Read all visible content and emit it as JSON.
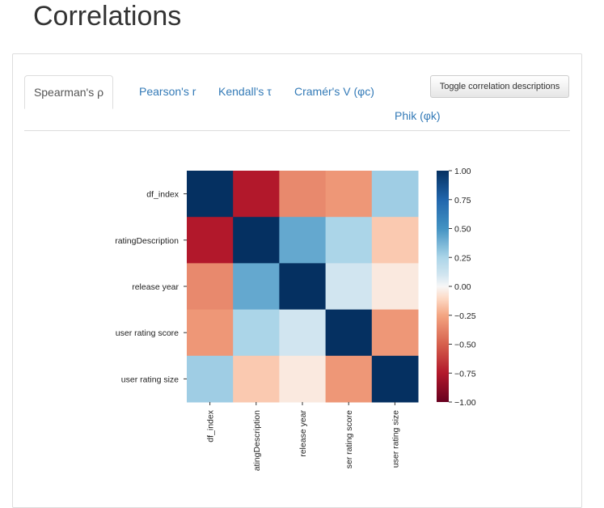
{
  "page": {
    "title": "Correlations"
  },
  "tabs": [
    {
      "label": "Spearman's ρ",
      "active": true
    },
    {
      "label": "Pearson's r",
      "active": false
    },
    {
      "label": "Kendall's τ",
      "active": false
    },
    {
      "label": "Cramér's V (φc)",
      "active": false
    },
    {
      "label": "Phik (φk)",
      "active": false
    }
  ],
  "toolbar": {
    "toggle_label": "Toggle correlation descriptions"
  },
  "colors": {
    "link": "#337ab7",
    "colormap": "RdBu"
  },
  "chart_data": {
    "type": "heatmap",
    "rows": [
      "df_index",
      "ratingDescription",
      "release year",
      "user rating score",
      "user rating size"
    ],
    "columns": [
      "df_index",
      "ratingDescription",
      "release year",
      "user rating score",
      "user rating size"
    ],
    "column_tick_labels": [
      "df_index",
      "atingDescription",
      "release year",
      "ser rating score",
      "user rating size"
    ],
    "values": [
      [
        1.0,
        -0.75,
        -0.35,
        -0.3,
        0.28
      ],
      [
        -0.75,
        1.0,
        0.42,
        0.25,
        -0.15
      ],
      [
        -0.35,
        0.42,
        1.0,
        0.1,
        -0.05
      ],
      [
        -0.3,
        0.25,
        0.1,
        1.0,
        -0.3
      ],
      [
        0.28,
        -0.15,
        -0.05,
        -0.3,
        1.0
      ]
    ],
    "colorbar": {
      "min": -1.0,
      "max": 1.0,
      "ticks": [
        "1.00",
        "0.75",
        "0.50",
        "0.25",
        "0.00",
        "−0.25",
        "−0.50",
        "−0.75",
        "−1.00"
      ]
    }
  }
}
